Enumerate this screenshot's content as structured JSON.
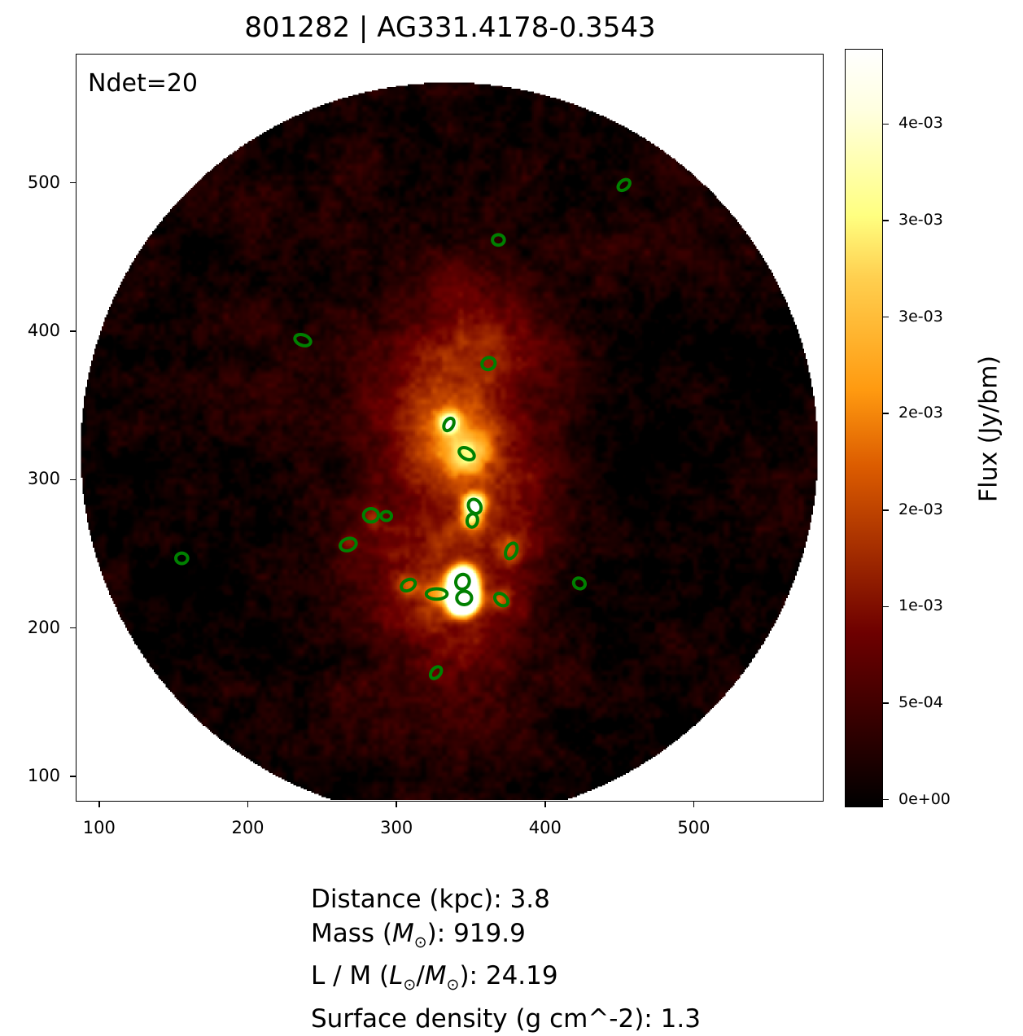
{
  "chart_data": {
    "type": "heatmap",
    "title": "801282 | AG331.4178-0.3543",
    "annotation": "Ndet=20",
    "xlim": [
      84.2,
      585.7
    ],
    "ylim": [
      84.7,
      586.9
    ],
    "x_ticks": [
      100,
      200,
      300,
      400,
      500
    ],
    "y_ticks": [
      100,
      200,
      300,
      400,
      500
    ],
    "grid": false,
    "colormap": "afmhot",
    "field_of_view": {
      "center": [
        335,
        320
      ],
      "radius": 248
    },
    "colorbar": {
      "label": "Flux (Jy/bm)",
      "range": [
        -4e-05,
        0.00389
      ],
      "ticks": [
        0,
        0.0005,
        0.001,
        0.0015,
        0.002,
        0.0025,
        0.003,
        0.0035
      ],
      "tick_labels": [
        "0e+00",
        "5e-04",
        "1e-03",
        "2e-03",
        "2e-03",
        "3e-03",
        "3e-03",
        "4e-03"
      ]
    },
    "detections_color": "#008000",
    "detections": [
      {
        "x": 452.5,
        "y": 499,
        "a": 4.5,
        "b": 3,
        "pa": 40
      },
      {
        "x": 368,
        "y": 462,
        "a": 4,
        "b": 3.5,
        "pa": 0
      },
      {
        "x": 236.4,
        "y": 394.5,
        "a": 5.5,
        "b": 3.5,
        "pa": -20
      },
      {
        "x": 361.4,
        "y": 378.7,
        "a": 4.5,
        "b": 4,
        "pa": 20
      },
      {
        "x": 334.7,
        "y": 337.7,
        "a": 4.5,
        "b": 3,
        "pa": 60
      },
      {
        "x": 346.7,
        "y": 318,
        "a": 5.5,
        "b": 3.5,
        "pa": -30
      },
      {
        "x": 352.1,
        "y": 282.5,
        "a": 5,
        "b": 4,
        "pa": -60
      },
      {
        "x": 350.5,
        "y": 273,
        "a": 4.5,
        "b": 3.5,
        "pa": 80
      },
      {
        "x": 282.3,
        "y": 276.5,
        "a": 5,
        "b": 4.5,
        "pa": 0
      },
      {
        "x": 292.6,
        "y": 276,
        "a": 3.5,
        "b": 3,
        "pa": 0
      },
      {
        "x": 267,
        "y": 256.8,
        "a": 5.5,
        "b": 4,
        "pa": 20
      },
      {
        "x": 376.7,
        "y": 252.5,
        "a": 5.5,
        "b": 3.5,
        "pa": 65
      },
      {
        "x": 155,
        "y": 247.5,
        "a": 4,
        "b": 3.5,
        "pa": 0
      },
      {
        "x": 422.5,
        "y": 230.6,
        "a": 4,
        "b": 3.5,
        "pa": -30
      },
      {
        "x": 307.4,
        "y": 229.5,
        "a": 5,
        "b": 3.5,
        "pa": 30
      },
      {
        "x": 326.5,
        "y": 223.5,
        "a": 7,
        "b": 3.5,
        "pa": 0
      },
      {
        "x": 343.9,
        "y": 231.7,
        "a": 5,
        "b": 4.5,
        "pa": 70
      },
      {
        "x": 345,
        "y": 220.8,
        "a": 5,
        "b": 4.5,
        "pa": 0
      },
      {
        "x": 370,
        "y": 219.7,
        "a": 5,
        "b": 3.5,
        "pa": -40
      },
      {
        "x": 326,
        "y": 170.5,
        "a": 4.5,
        "b": 3,
        "pa": 50
      }
    ]
  },
  "info": {
    "distance": "Distance (kpc): 3.8",
    "mass_prefix": "Mass (",
    "mass_sym": "M",
    "mass_suffix": "): 919.9",
    "lm_prefix": "L / M (",
    "lm_l": "L",
    "lm_mid": "/",
    "lm_m": "M",
    "lm_suffix": "): 24.19",
    "sun_symbol": "⊙",
    "surface_density": "Surface density (g cm^-2): 1.3"
  }
}
